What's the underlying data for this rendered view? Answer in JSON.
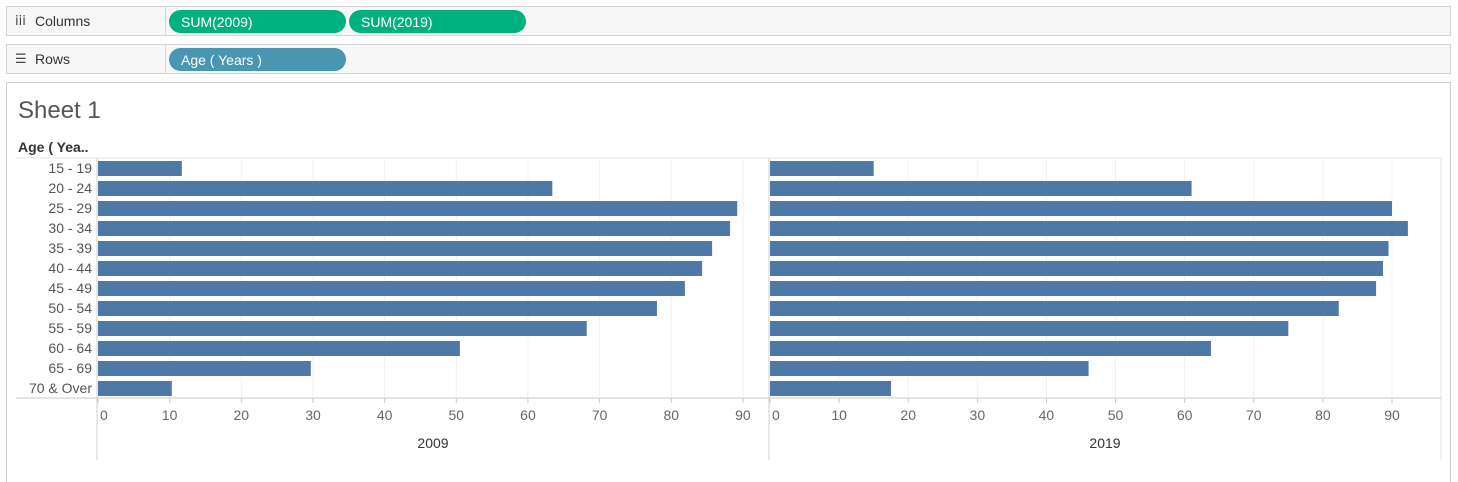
{
  "shelves": {
    "columns": {
      "label": "Columns",
      "icon": "iii",
      "pills": [
        "SUM(2009)",
        "SUM(2019)"
      ]
    },
    "rows": {
      "label": "Rows",
      "icon": "☰",
      "pills": [
        "Age ( Years )"
      ]
    }
  },
  "sheet": {
    "title": "Sheet 1",
    "row_header": "Age ( Yea.."
  },
  "colors": {
    "bar": "#4e79a7",
    "pill_measure": "#00b180",
    "pill_dimension": "#4996b2"
  },
  "chart_data": {
    "type": "bar",
    "orientation": "horizontal",
    "categories": [
      "15 - 19",
      "20 - 24",
      "25 - 29",
      "30 - 34",
      "35 - 39",
      "40 - 44",
      "45 - 49",
      "50 - 54",
      "55 - 59",
      "60 - 64",
      "65 - 69",
      "70 & Over"
    ],
    "xlim": [
      0,
      90
    ],
    "ticks": [
      0,
      10,
      20,
      30,
      40,
      50,
      60,
      70,
      80,
      90
    ],
    "grid": true,
    "series": [
      {
        "name": "2009",
        "values": [
          11.7,
          63.4,
          89.2,
          88.2,
          85.7,
          84.3,
          81.9,
          78.0,
          68.2,
          50.5,
          29.7,
          10.3
        ]
      },
      {
        "name": "2019",
        "values": [
          15.0,
          61.0,
          90.0,
          92.3,
          89.5,
          88.7,
          87.7,
          82.3,
          75.0,
          63.8,
          46.1,
          17.5
        ]
      }
    ]
  }
}
